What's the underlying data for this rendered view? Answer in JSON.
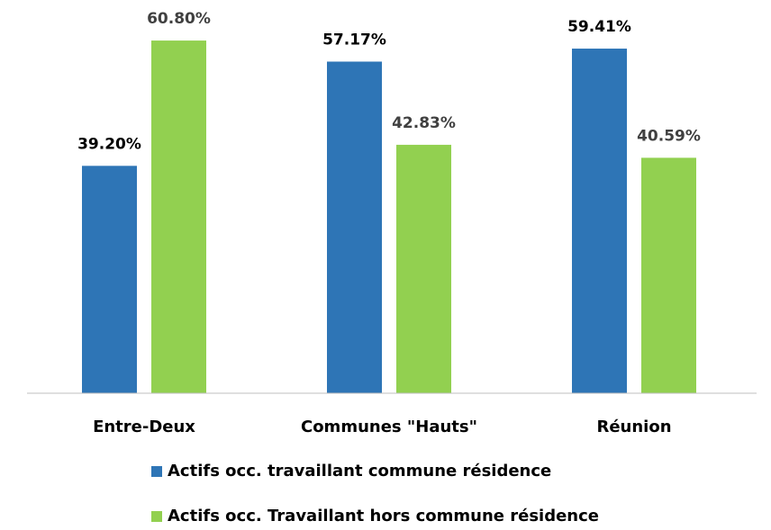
{
  "chart_data": {
    "type": "bar",
    "categories": [
      "Entre-Deux",
      "Communes \"Hauts\"",
      "Réunion"
    ],
    "series": [
      {
        "name": "Actifs occ. travaillant commune résidence",
        "color": "#2e75b6",
        "values": [
          39.2,
          57.17,
          59.41
        ],
        "value_labels": [
          "39.20%",
          "57.17%",
          "59.41%"
        ]
      },
      {
        "name": "Actifs occ. Travaillant hors commune résidence",
        "color": "#92d050",
        "values": [
          60.8,
          42.83,
          40.59
        ],
        "value_labels": [
          "60.80%",
          "42.83%",
          "40.59%"
        ]
      }
    ],
    "ylim": [
      0,
      65
    ],
    "legend": "bottom"
  }
}
